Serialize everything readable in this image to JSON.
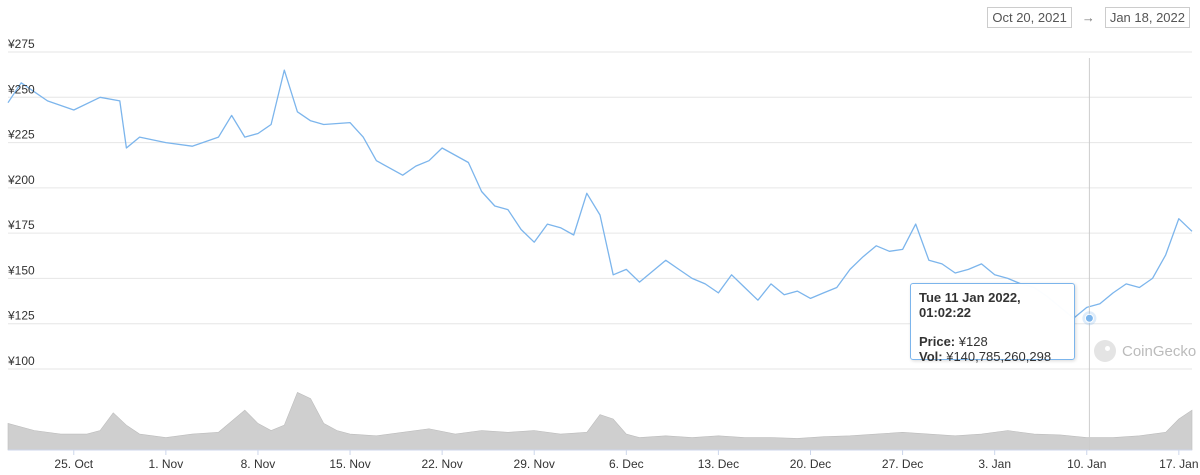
{
  "date_range": {
    "from": "Oct 20, 2021",
    "arrow": "→",
    "to": "Jan 18, 2022"
  },
  "chart_data": {
    "type": "line",
    "ylim": [
      100,
      275
    ],
    "y_ticks": [
      "¥275",
      "¥250",
      "¥225",
      "¥200",
      "¥175",
      "¥150",
      "¥125",
      "¥100"
    ],
    "y_tick_values": [
      275,
      250,
      225,
      200,
      175,
      150,
      125,
      100
    ],
    "x_ticks": [
      "25. Oct",
      "1. Nov",
      "8. Nov",
      "15. Nov",
      "22. Nov",
      "29. Nov",
      "6. Dec",
      "13. Dec",
      "20. Dec",
      "27. Dec",
      "3. Jan",
      "10. Jan",
      "17. Jan"
    ],
    "x_tick_days": [
      5,
      12,
      19,
      26,
      33,
      40,
      47,
      54,
      61,
      68,
      75,
      82,
      89
    ],
    "grid": true,
    "line_color": "#7cb5ec",
    "volume_color": "#cfcfcf",
    "price": {
      "days": [
        0,
        1,
        3,
        5,
        7,
        8.5,
        9,
        10,
        12,
        14,
        16,
        17,
        18,
        19,
        20,
        21,
        22,
        23,
        24,
        26,
        27,
        28,
        30,
        31,
        32,
        33,
        35,
        36,
        37,
        38,
        39,
        40,
        41,
        42,
        43,
        44,
        45,
        46,
        47,
        48,
        50,
        51,
        52,
        53,
        54,
        55,
        56,
        57,
        58,
        59,
        60,
        61,
        62,
        63,
        64,
        65,
        66,
        67,
        68,
        69,
        70,
        71,
        72,
        73,
        74,
        75,
        76,
        77,
        78,
        79,
        80,
        81,
        82,
        83,
        84,
        85,
        86,
        87,
        88,
        89,
        90
      ],
      "values": [
        247,
        258,
        248,
        243,
        250,
        248,
        222,
        228,
        225,
        223,
        228,
        240,
        228,
        230,
        235,
        265,
        242,
        237,
        235,
        236,
        228,
        215,
        207,
        212,
        215,
        222,
        214,
        198,
        190,
        188,
        177,
        170,
        180,
        178,
        174,
        197,
        185,
        152,
        155,
        148,
        160,
        155,
        150,
        147,
        142,
        152,
        145,
        138,
        147,
        141,
        143,
        139,
        142,
        145,
        155,
        162,
        168,
        165,
        166,
        180,
        160,
        158,
        153,
        155,
        158,
        152,
        150,
        147,
        145,
        140,
        134,
        128,
        134,
        136,
        142,
        147,
        145,
        150,
        163,
        183,
        176
      ]
    },
    "volume": {
      "days": [
        0,
        2,
        4,
        6,
        7,
        8,
        9,
        10,
        11,
        12,
        14,
        16,
        18,
        19,
        20,
        21,
        22,
        23,
        24,
        25,
        26,
        28,
        30,
        32,
        34,
        36,
        38,
        40,
        42,
        44,
        45,
        46,
        47,
        48,
        50,
        52,
        54,
        56,
        58,
        60,
        62,
        64,
        66,
        68,
        70,
        72,
        74,
        76,
        78,
        80,
        82,
        84,
        86,
        88,
        89,
        90
      ],
      "values": [
        30,
        22,
        18,
        18,
        22,
        42,
        28,
        18,
        16,
        14,
        18,
        20,
        45,
        30,
        22,
        28,
        65,
        58,
        30,
        22,
        18,
        16,
        20,
        24,
        18,
        22,
        20,
        22,
        18,
        20,
        40,
        35,
        18,
        14,
        16,
        14,
        16,
        14,
        14,
        13,
        15,
        16,
        18,
        20,
        18,
        16,
        18,
        22,
        18,
        17,
        14,
        14,
        16,
        20,
        35,
        45
      ]
    },
    "hover": {
      "title": "Tue 11 Jan 2022, 01:02:22",
      "price_label": "Price:",
      "price_value": "¥128",
      "vol_label": "Vol:",
      "vol_value": "¥140,785,260,298",
      "day": 82.2,
      "value": 128
    }
  },
  "watermark": "CoinGecko"
}
